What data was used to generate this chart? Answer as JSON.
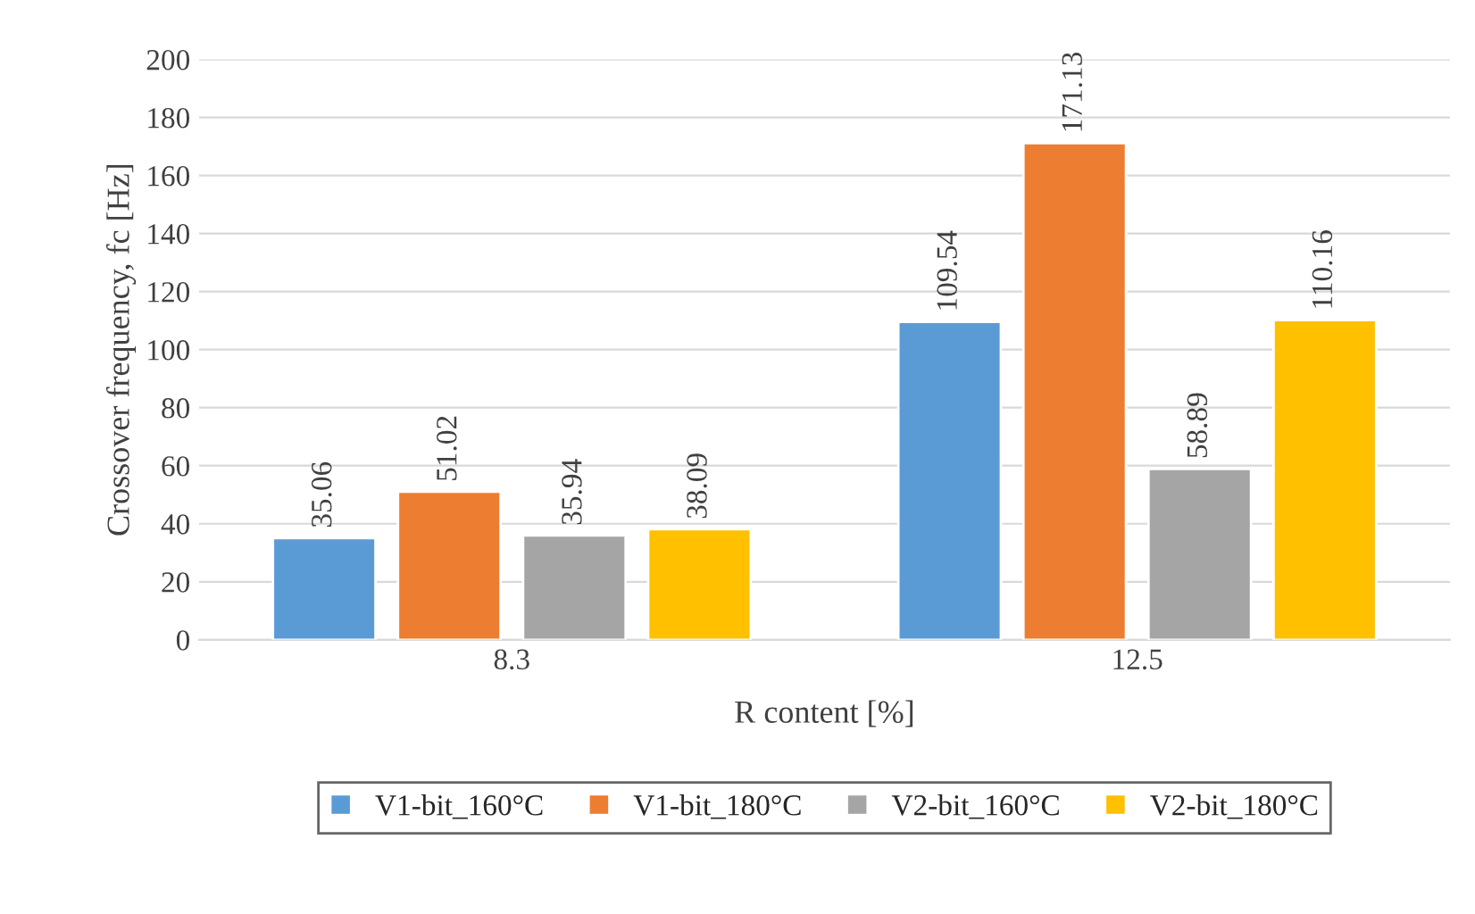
{
  "chart_data": {
    "type": "bar",
    "xlabel": "R content [%]",
    "ylabel": "Crossover frequency, fc [Hz]",
    "categories": [
      "8.3",
      "12.5"
    ],
    "series": [
      {
        "name": "V1-bit_160°C",
        "color": "#5b9bd5",
        "values": [
          35.06,
          109.54
        ]
      },
      {
        "name": "V1-bit_180°C",
        "color": "#ed7d31",
        "values": [
          51.02,
          171.13
        ]
      },
      {
        "name": "V2-bit_160°C",
        "color": "#a5a5a5",
        "values": [
          35.94,
          58.89
        ]
      },
      {
        "name": "V2-bit_180°C",
        "color": "#ffc000",
        "values": [
          38.09,
          110.16
        ]
      }
    ],
    "ylim": [
      0,
      200
    ],
    "yticks": [
      0,
      20,
      40,
      60,
      80,
      100,
      120,
      140,
      160,
      180,
      200
    ],
    "grid": "y",
    "legend": "bottom",
    "data_labels": true
  }
}
